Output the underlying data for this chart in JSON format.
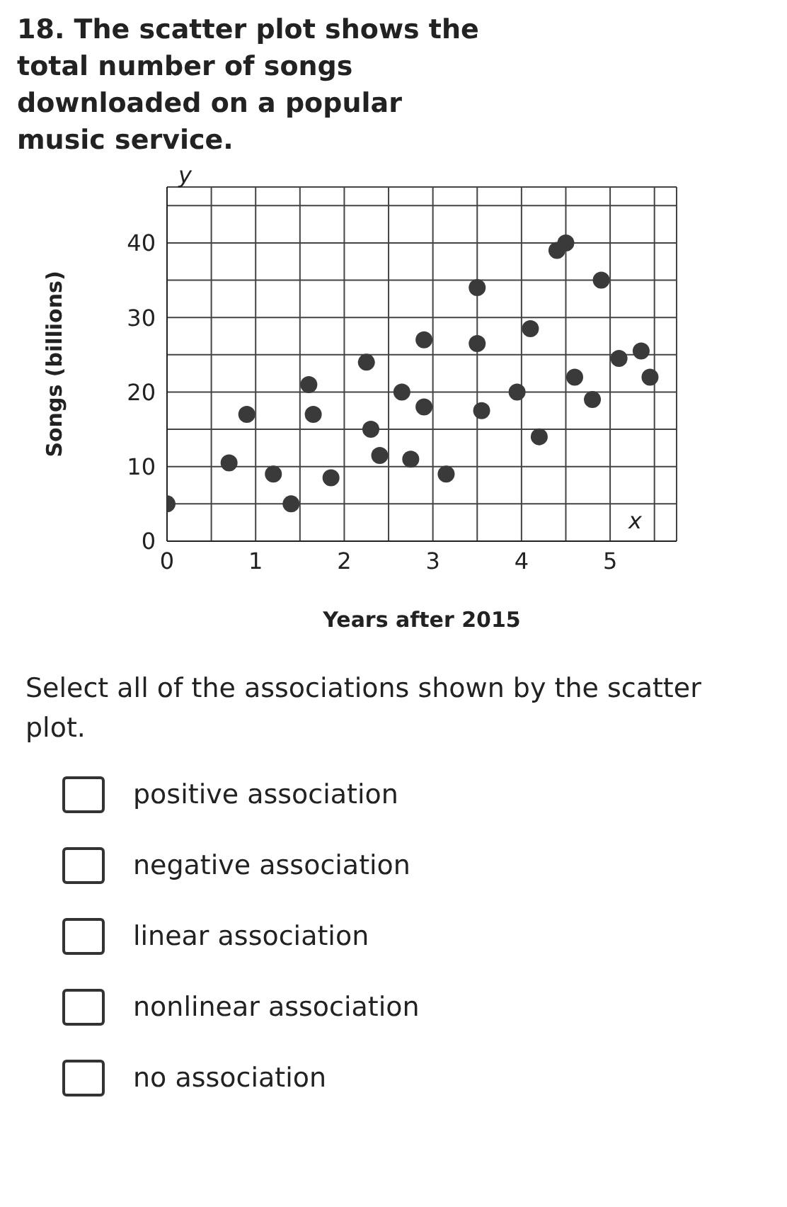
{
  "chart_data": {
    "type": "scatter",
    "title": "18. The scatter plot shows the total number of songs downloaded on a popular music service.",
    "xlabel": "Years after 2015",
    "ylabel": "Songs (billions)",
    "annotations": [
      "y",
      "x",
      "Select all of the associations shown by the scatter plot.",
      "positive association",
      "negative association",
      "linear association",
      "nonlinear association",
      "no association"
    ],
    "x": [
      0,
      0.7,
      0.9,
      1.2,
      1.4,
      1.6,
      1.65,
      1.85,
      2.25,
      2.3,
      2.4,
      2.65,
      2.75,
      2.9,
      2.9,
      3.15,
      3.5,
      3.5,
      3.55,
      3.95,
      4.1,
      4.2,
      4.4,
      4.5,
      4.6,
      4.8,
      4.9,
      5.1,
      5.35,
      5.45
    ],
    "values": [
      5,
      10.5,
      17,
      9,
      5,
      21,
      17,
      8.5,
      24,
      15,
      11.5,
      20,
      11,
      27,
      18,
      9,
      34,
      26.5,
      17.5,
      20,
      28.5,
      14,
      39,
      40,
      22,
      19,
      35,
      24.5,
      25.5,
      22
    ],
    "color": "#3a3a3a",
    "marker": "circle",
    "xlim": [
      0,
      5.75
    ],
    "ylim": [
      0,
      47.5
    ],
    "xticks": [
      0,
      {
        "value": 0.5,
        "label": null
      },
      1,
      {
        "value": 1.5,
        "label": null
      },
      2,
      {
        "value": 2.5,
        "label": null
      },
      3,
      {
        "value": 3.5,
        "label": null
      },
      4,
      {
        "value": 4.5,
        "label": null
      },
      5,
      {
        "value": 5.5,
        "label": null
      }
    ],
    "yticks": [
      0,
      {
        "value": 5,
        "label": null
      },
      10,
      {
        "value": 15,
        "label": null
      },
      20,
      {
        "value": 25,
        "label": null
      },
      30,
      {
        "value": 35,
        "label": null
      },
      40,
      {
        "value": 45,
        "label": null
      }
    ],
    "grid": true,
    "legend": false
  }
}
